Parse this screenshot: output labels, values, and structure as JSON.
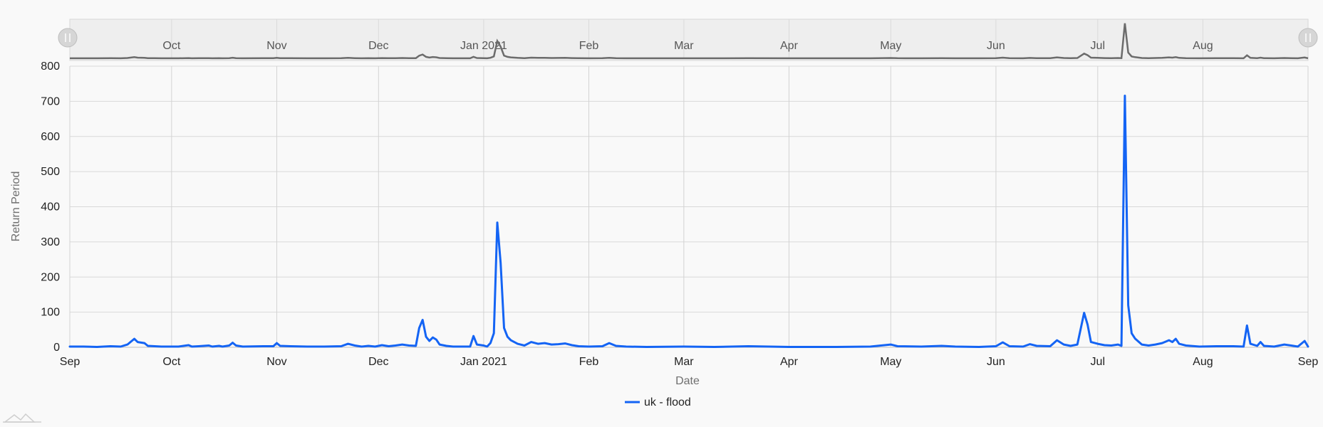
{
  "chart_data": {
    "type": "line",
    "xlabel": "Date",
    "ylabel": "Return Period",
    "ylim": [
      0,
      800
    ],
    "y_ticks": [
      0,
      100,
      200,
      300,
      400,
      500,
      600,
      700,
      800
    ],
    "x_range": [
      "2020-09-01",
      "2021-09-01"
    ],
    "x_ticks": [
      {
        "date": "2020-09-01",
        "label": "Sep"
      },
      {
        "date": "2020-10-01",
        "label": "Oct"
      },
      {
        "date": "2020-11-01",
        "label": "Nov"
      },
      {
        "date": "2020-12-01",
        "label": "Dec"
      },
      {
        "date": "2021-01-01",
        "label": "Jan 2021"
      },
      {
        "date": "2021-02-01",
        "label": "Feb"
      },
      {
        "date": "2021-03-01",
        "label": "Mar"
      },
      {
        "date": "2021-04-01",
        "label": "Apr"
      },
      {
        "date": "2021-05-01",
        "label": "May"
      },
      {
        "date": "2021-06-01",
        "label": "Jun"
      },
      {
        "date": "2021-07-01",
        "label": "Jul"
      },
      {
        "date": "2021-08-01",
        "label": "Aug"
      },
      {
        "date": "2021-09-01",
        "label": "Sep"
      }
    ],
    "navigator_labels": [
      "Oct",
      "Nov",
      "Dec",
      "Jan 2021",
      "Feb",
      "Mar",
      "Apr",
      "May",
      "Jun",
      "Jul",
      "Aug"
    ],
    "legend_position": "bottom-center",
    "grid": true,
    "series": [
      {
        "name": "uk - flood",
        "color": "#1464f4",
        "points": [
          [
            "2020-09-01",
            2
          ],
          [
            "2020-09-05",
            2
          ],
          [
            "2020-09-09",
            1
          ],
          [
            "2020-09-13",
            3
          ],
          [
            "2020-09-16",
            2
          ],
          [
            "2020-09-18",
            8
          ],
          [
            "2020-09-20",
            24
          ],
          [
            "2020-09-21",
            15
          ],
          [
            "2020-09-23",
            12
          ],
          [
            "2020-09-24",
            4
          ],
          [
            "2020-09-26",
            3
          ],
          [
            "2020-09-28",
            2
          ],
          [
            "2020-10-03",
            2
          ],
          [
            "2020-10-06",
            6
          ],
          [
            "2020-10-07",
            2
          ],
          [
            "2020-10-09",
            3
          ],
          [
            "2020-10-12",
            5
          ],
          [
            "2020-10-13",
            2
          ],
          [
            "2020-10-15",
            4
          ],
          [
            "2020-10-16",
            2
          ],
          [
            "2020-10-18",
            5
          ],
          [
            "2020-10-19",
            13
          ],
          [
            "2020-10-20",
            5
          ],
          [
            "2020-10-22",
            2
          ],
          [
            "2020-10-28",
            3
          ],
          [
            "2020-10-31",
            3
          ],
          [
            "2020-11-01",
            12
          ],
          [
            "2020-11-02",
            4
          ],
          [
            "2020-11-05",
            3
          ],
          [
            "2020-11-10",
            2
          ],
          [
            "2020-11-15",
            2
          ],
          [
            "2020-11-20",
            3
          ],
          [
            "2020-11-22",
            10
          ],
          [
            "2020-11-24",
            5
          ],
          [
            "2020-11-26",
            2
          ],
          [
            "2020-11-28",
            4
          ],
          [
            "2020-11-30",
            2
          ],
          [
            "2020-12-02",
            6
          ],
          [
            "2020-12-04",
            3
          ],
          [
            "2020-12-06",
            5
          ],
          [
            "2020-12-08",
            8
          ],
          [
            "2020-12-10",
            5
          ],
          [
            "2020-12-12",
            4
          ],
          [
            "2020-12-13",
            55
          ],
          [
            "2020-12-14",
            78
          ],
          [
            "2020-12-15",
            30
          ],
          [
            "2020-12-16",
            18
          ],
          [
            "2020-12-17",
            28
          ],
          [
            "2020-12-18",
            22
          ],
          [
            "2020-12-19",
            8
          ],
          [
            "2020-12-21",
            4
          ],
          [
            "2020-12-23",
            2
          ],
          [
            "2020-12-28",
            2
          ],
          [
            "2020-12-29",
            32
          ],
          [
            "2020-12-30",
            8
          ],
          [
            "2021-01-01",
            5
          ],
          [
            "2021-01-02",
            2
          ],
          [
            "2021-01-03",
            12
          ],
          [
            "2021-01-04",
            40
          ],
          [
            "2021-01-05",
            355
          ],
          [
            "2021-01-06",
            240
          ],
          [
            "2021-01-07",
            55
          ],
          [
            "2021-01-08",
            30
          ],
          [
            "2021-01-09",
            20
          ],
          [
            "2021-01-11",
            10
          ],
          [
            "2021-01-13",
            5
          ],
          [
            "2021-01-15",
            15
          ],
          [
            "2021-01-17",
            10
          ],
          [
            "2021-01-19",
            12
          ],
          [
            "2021-01-21",
            8
          ],
          [
            "2021-01-23",
            9
          ],
          [
            "2021-01-25",
            11
          ],
          [
            "2021-01-27",
            6
          ],
          [
            "2021-01-29",
            3
          ],
          [
            "2021-02-01",
            2
          ],
          [
            "2021-02-05",
            3
          ],
          [
            "2021-02-07",
            12
          ],
          [
            "2021-02-09",
            4
          ],
          [
            "2021-02-12",
            2
          ],
          [
            "2021-02-18",
            1
          ],
          [
            "2021-03-01",
            2
          ],
          [
            "2021-03-10",
            1
          ],
          [
            "2021-03-20",
            3
          ],
          [
            "2021-04-01",
            1
          ],
          [
            "2021-04-15",
            1
          ],
          [
            "2021-04-25",
            2
          ],
          [
            "2021-05-01",
            8
          ],
          [
            "2021-05-03",
            3
          ],
          [
            "2021-05-10",
            2
          ],
          [
            "2021-05-16",
            4
          ],
          [
            "2021-05-20",
            2
          ],
          [
            "2021-05-27",
            1
          ],
          [
            "2021-06-01",
            3
          ],
          [
            "2021-06-03",
            14
          ],
          [
            "2021-06-05",
            3
          ],
          [
            "2021-06-09",
            2
          ],
          [
            "2021-06-11",
            9
          ],
          [
            "2021-06-13",
            4
          ],
          [
            "2021-06-17",
            3
          ],
          [
            "2021-06-19",
            20
          ],
          [
            "2021-06-21",
            8
          ],
          [
            "2021-06-23",
            4
          ],
          [
            "2021-06-25",
            8
          ],
          [
            "2021-06-27",
            98
          ],
          [
            "2021-06-28",
            65
          ],
          [
            "2021-06-29",
            15
          ],
          [
            "2021-07-01",
            10
          ],
          [
            "2021-07-03",
            6
          ],
          [
            "2021-07-05",
            5
          ],
          [
            "2021-07-07",
            8
          ],
          [
            "2021-07-08",
            4
          ],
          [
            "2021-07-09",
            716
          ],
          [
            "2021-07-10",
            120
          ],
          [
            "2021-07-11",
            40
          ],
          [
            "2021-07-12",
            25
          ],
          [
            "2021-07-14",
            8
          ],
          [
            "2021-07-16",
            5
          ],
          [
            "2021-07-18",
            8
          ],
          [
            "2021-07-20",
            12
          ],
          [
            "2021-07-22",
            20
          ],
          [
            "2021-07-23",
            15
          ],
          [
            "2021-07-24",
            24
          ],
          [
            "2021-07-25",
            10
          ],
          [
            "2021-07-27",
            5
          ],
          [
            "2021-07-31",
            2
          ],
          [
            "2021-08-05",
            3
          ],
          [
            "2021-08-10",
            3
          ],
          [
            "2021-08-13",
            2
          ],
          [
            "2021-08-14",
            62
          ],
          [
            "2021-08-15",
            10
          ],
          [
            "2021-08-17",
            4
          ],
          [
            "2021-08-18",
            15
          ],
          [
            "2021-08-19",
            4
          ],
          [
            "2021-08-22",
            2
          ],
          [
            "2021-08-25",
            8
          ],
          [
            "2021-08-27",
            5
          ],
          [
            "2021-08-29",
            2
          ],
          [
            "2021-08-31",
            18
          ],
          [
            "2021-09-01",
            2
          ]
        ]
      }
    ]
  }
}
